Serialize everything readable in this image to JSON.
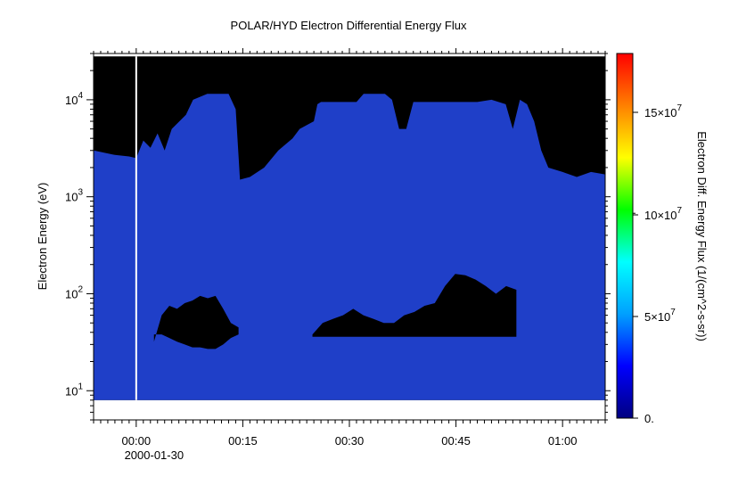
{
  "chart_data": {
    "type": "heatmap",
    "title": "POLAR/HYD  Electron Differential Energy Flux",
    "xlabel": "",
    "ylabel": "Electron Energy (eV)",
    "colorbar_label": "Electron Diff. Energy Flux (1/(cm^2-s-sr))",
    "y_scale": "log",
    "ylim": [
      5,
      30000
    ],
    "xlim_minutes": [
      -6,
      66
    ],
    "x_ticks": [
      {
        "minutes": 0,
        "label": "00:00",
        "sublabel": "2000-01-30"
      },
      {
        "minutes": 15,
        "label": "00:15",
        "sublabel": ""
      },
      {
        "minutes": 30,
        "label": "00:30",
        "sublabel": ""
      },
      {
        "minutes": 45,
        "label": "00:45",
        "sublabel": ""
      },
      {
        "minutes": 60,
        "label": "01:00",
        "sublabel": ""
      }
    ],
    "y_ticks": [
      {
        "value": 10,
        "base": "10",
        "exp": "1"
      },
      {
        "value": 100,
        "base": "10",
        "exp": "2"
      },
      {
        "value": 1000,
        "base": "10",
        "exp": "3"
      },
      {
        "value": 10000,
        "base": "10",
        "exp": "4"
      }
    ],
    "colorbar_range": [
      0,
      17800000
    ],
    "colorbar_ticks": [
      {
        "value": 0,
        "label": "0."
      },
      {
        "value": 50000000,
        "base": "5×10",
        "exp": "7"
      },
      {
        "value": 100000000,
        "base": "10×10",
        "exp": "7"
      },
      {
        "value": 150000000,
        "base": "15×10",
        "exp": "7"
      }
    ],
    "colors": {
      "background_fill": "#000000",
      "flux_fill": "#1f3fc8",
      "data_gap_line": "#ffffff",
      "colormap": [
        "#000080",
        "#0000ff",
        "#00a0ff",
        "#00ffff",
        "#00ff00",
        "#ffff00",
        "#ff8000",
        "#ff0000"
      ]
    },
    "data_gap_minutes": 0,
    "data_energy_range": [
      8,
      28000
    ],
    "upper_flux_boundary": [
      [
        -6,
        3000
      ],
      [
        -3,
        2700
      ],
      [
        -1,
        2600
      ],
      [
        0,
        2500
      ],
      [
        1,
        3800
      ],
      [
        2,
        3200
      ],
      [
        3,
        4500
      ],
      [
        4,
        3000
      ],
      [
        5,
        5000
      ],
      [
        7,
        7000
      ],
      [
        8,
        10000
      ],
      [
        10,
        11500
      ],
      [
        13,
        11500
      ],
      [
        14,
        8000
      ],
      [
        14.6,
        1500
      ],
      [
        16,
        1600
      ],
      [
        18,
        2000
      ],
      [
        20,
        3000
      ],
      [
        22,
        4000
      ],
      [
        23,
        5000
      ],
      [
        25,
        6000
      ],
      [
        25.5,
        9000
      ],
      [
        26,
        9500
      ],
      [
        31,
        9500
      ],
      [
        32,
        11500
      ],
      [
        35,
        11500
      ],
      [
        36,
        10000
      ],
      [
        37,
        5000
      ],
      [
        38,
        5000
      ],
      [
        39,
        9500
      ],
      [
        48,
        9500
      ],
      [
        50,
        10000
      ],
      [
        52,
        9000
      ],
      [
        53,
        5000
      ],
      [
        54,
        10000
      ],
      [
        55,
        9000
      ],
      [
        56,
        6000
      ],
      [
        57,
        3000
      ],
      [
        58,
        2000
      ],
      [
        60,
        1800
      ],
      [
        62,
        1600
      ],
      [
        64,
        1800
      ],
      [
        66,
        1700
      ]
    ],
    "low_energy_voids": [
      {
        "minutes": [
          2.5,
          14.4
        ],
        "energy_top": [
          32,
          60,
          75,
          70,
          80,
          85,
          95,
          90,
          95,
          70,
          50,
          45
        ],
        "energy_bottom": [
          38,
          38,
          35,
          32,
          30,
          28,
          28,
          27,
          27,
          30,
          35,
          38
        ]
      },
      {
        "minutes": [
          24.8,
          53.5
        ],
        "energy_top": [
          38,
          50,
          55,
          60,
          70,
          60,
          55,
          50,
          50,
          60,
          65,
          75,
          80,
          120,
          160,
          155,
          140,
          120,
          100,
          120,
          110
        ],
        "energy_bottom": [
          36,
          36,
          36,
          36,
          36,
          36,
          36,
          36,
          36,
          36,
          36,
          36,
          36,
          36,
          36,
          36,
          36,
          36,
          36,
          36,
          36
        ]
      }
    ]
  }
}
